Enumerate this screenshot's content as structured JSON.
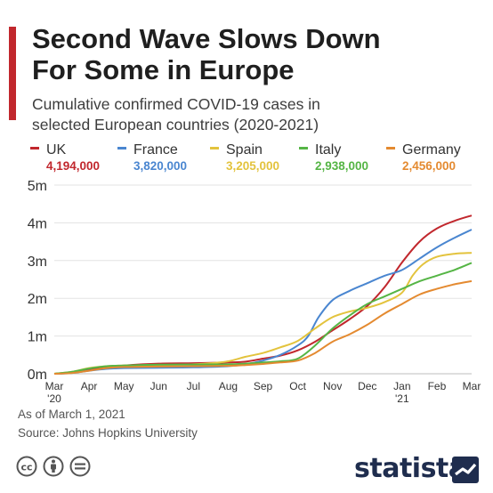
{
  "header": {
    "title_lines": [
      "Second Wave Slows Down",
      "For Some in Europe"
    ],
    "subtitle_lines": [
      "Cumulative confirmed COVID-19 cases in",
      "selected European countries (2020-2021)"
    ]
  },
  "legend": [
    {
      "name": "UK",
      "value": "4,194,000",
      "color": "#c1272d"
    },
    {
      "name": "France",
      "value": "3,820,000",
      "color": "#4a86d0"
    },
    {
      "name": "Spain",
      "value": "3,205,000",
      "color": "#e3c33d"
    },
    {
      "name": "Italy",
      "value": "2,938,000",
      "color": "#55b545"
    },
    {
      "name": "Germany",
      "value": "2,456,000",
      "color": "#e48a30"
    }
  ],
  "chart_data": {
    "type": "line",
    "title": "Second Wave Slows Down For Some in Europe",
    "subtitle": "Cumulative confirmed COVID-19 cases in selected European countries (2020-2021)",
    "y_ticks": [
      {
        "value": 0,
        "label": "0m"
      },
      {
        "value": 1,
        "label": "1m"
      },
      {
        "value": 2,
        "label": "2m"
      },
      {
        "value": 3,
        "label": "3m"
      },
      {
        "value": 4,
        "label": "4m"
      },
      {
        "value": 5,
        "label": "5m"
      }
    ],
    "ylim": [
      0,
      5
    ],
    "x_ticks": [
      {
        "value": 0,
        "label": "Mar",
        "sub": "'20"
      },
      {
        "value": 1,
        "label": "Apr"
      },
      {
        "value": 2,
        "label": "May"
      },
      {
        "value": 3,
        "label": "Jun"
      },
      {
        "value": 4,
        "label": "Jul"
      },
      {
        "value": 5,
        "label": "Aug"
      },
      {
        "value": 6,
        "label": "Sep"
      },
      {
        "value": 7,
        "label": "Oct"
      },
      {
        "value": 8,
        "label": "Nov"
      },
      {
        "value": 9,
        "label": "Dec"
      },
      {
        "value": 10,
        "label": "Jan",
        "sub": "'21"
      },
      {
        "value": 11,
        "label": "Feb"
      },
      {
        "value": 12,
        "label": "Mar"
      }
    ],
    "xlim": [
      0,
      12
    ],
    "grid": true,
    "legend_position": "top",
    "series": [
      {
        "name": "UK",
        "color": "#c1272d",
        "points": [
          [
            0,
            0
          ],
          [
            0.5,
            0.03
          ],
          [
            1,
            0.1
          ],
          [
            1.5,
            0.17
          ],
          [
            2,
            0.22
          ],
          [
            3,
            0.27
          ],
          [
            4,
            0.28
          ],
          [
            5,
            0.3
          ],
          [
            5.5,
            0.32
          ],
          [
            6,
            0.4
          ],
          [
            6.5,
            0.48
          ],
          [
            7,
            0.62
          ],
          [
            7.5,
            0.85
          ],
          [
            8,
            1.15
          ],
          [
            8.5,
            1.45
          ],
          [
            9,
            1.8
          ],
          [
            9.5,
            2.3
          ],
          [
            10,
            2.95
          ],
          [
            10.5,
            3.5
          ],
          [
            11,
            3.85
          ],
          [
            11.5,
            4.05
          ],
          [
            12,
            4.194
          ]
        ]
      },
      {
        "name": "France",
        "color": "#4a86d0",
        "points": [
          [
            0,
            0
          ],
          [
            0.5,
            0.02
          ],
          [
            1,
            0.08
          ],
          [
            1.5,
            0.13
          ],
          [
            2,
            0.15
          ],
          [
            3,
            0.16
          ],
          [
            4,
            0.17
          ],
          [
            5,
            0.2
          ],
          [
            5.5,
            0.25
          ],
          [
            6,
            0.35
          ],
          [
            6.5,
            0.5
          ],
          [
            7,
            0.75
          ],
          [
            7.3,
            1.0
          ],
          [
            7.6,
            1.5
          ],
          [
            8,
            1.95
          ],
          [
            8.5,
            2.2
          ],
          [
            9,
            2.4
          ],
          [
            9.5,
            2.6
          ],
          [
            10,
            2.75
          ],
          [
            10.5,
            3.05
          ],
          [
            11,
            3.35
          ],
          [
            11.5,
            3.6
          ],
          [
            12,
            3.82
          ]
        ]
      },
      {
        "name": "Spain",
        "color": "#e3c33d",
        "points": [
          [
            0,
            0
          ],
          [
            0.5,
            0.05
          ],
          [
            1,
            0.15
          ],
          [
            1.5,
            0.2
          ],
          [
            2,
            0.22
          ],
          [
            3,
            0.23
          ],
          [
            4,
            0.25
          ],
          [
            4.5,
            0.28
          ],
          [
            5,
            0.33
          ],
          [
            5.5,
            0.45
          ],
          [
            6,
            0.55
          ],
          [
            6.5,
            0.7
          ],
          [
            7,
            0.87
          ],
          [
            7.5,
            1.2
          ],
          [
            8,
            1.5
          ],
          [
            8.5,
            1.65
          ],
          [
            9,
            1.75
          ],
          [
            9.5,
            1.9
          ],
          [
            10,
            2.15
          ],
          [
            10.3,
            2.6
          ],
          [
            10.6,
            2.9
          ],
          [
            11,
            3.1
          ],
          [
            11.5,
            3.18
          ],
          [
            12,
            3.205
          ]
        ]
      },
      {
        "name": "Italy",
        "color": "#55b545",
        "points": [
          [
            0,
            0
          ],
          [
            0.5,
            0.05
          ],
          [
            1,
            0.14
          ],
          [
            1.5,
            0.2
          ],
          [
            2,
            0.22
          ],
          [
            3,
            0.24
          ],
          [
            4,
            0.245
          ],
          [
            5,
            0.25
          ],
          [
            5.5,
            0.27
          ],
          [
            6,
            0.3
          ],
          [
            6.5,
            0.33
          ],
          [
            7,
            0.4
          ],
          [
            7.5,
            0.75
          ],
          [
            8,
            1.2
          ],
          [
            8.5,
            1.55
          ],
          [
            9,
            1.85
          ],
          [
            9.5,
            2.05
          ],
          [
            10,
            2.25
          ],
          [
            10.5,
            2.45
          ],
          [
            11,
            2.6
          ],
          [
            11.5,
            2.75
          ],
          [
            12,
            2.938
          ]
        ]
      },
      {
        "name": "Germany",
        "color": "#e48a30",
        "points": [
          [
            0,
            0
          ],
          [
            0.5,
            0.02
          ],
          [
            1,
            0.08
          ],
          [
            1.5,
            0.15
          ],
          [
            2,
            0.18
          ],
          [
            3,
            0.19
          ],
          [
            4,
            0.2
          ],
          [
            5,
            0.21
          ],
          [
            5.5,
            0.23
          ],
          [
            6,
            0.26
          ],
          [
            6.5,
            0.3
          ],
          [
            7,
            0.35
          ],
          [
            7.5,
            0.55
          ],
          [
            8,
            0.85
          ],
          [
            8.5,
            1.05
          ],
          [
            9,
            1.3
          ],
          [
            9.5,
            1.6
          ],
          [
            10,
            1.85
          ],
          [
            10.5,
            2.1
          ],
          [
            11,
            2.25
          ],
          [
            11.5,
            2.37
          ],
          [
            12,
            2.456
          ]
        ]
      }
    ]
  },
  "footer": {
    "as_of": "As of March 1, 2021",
    "source": "Source: Johns Hopkins University",
    "brand": "statista",
    "icons": [
      "creative-commons-icon",
      "attribution-icon",
      "no-derivatives-icon"
    ]
  }
}
